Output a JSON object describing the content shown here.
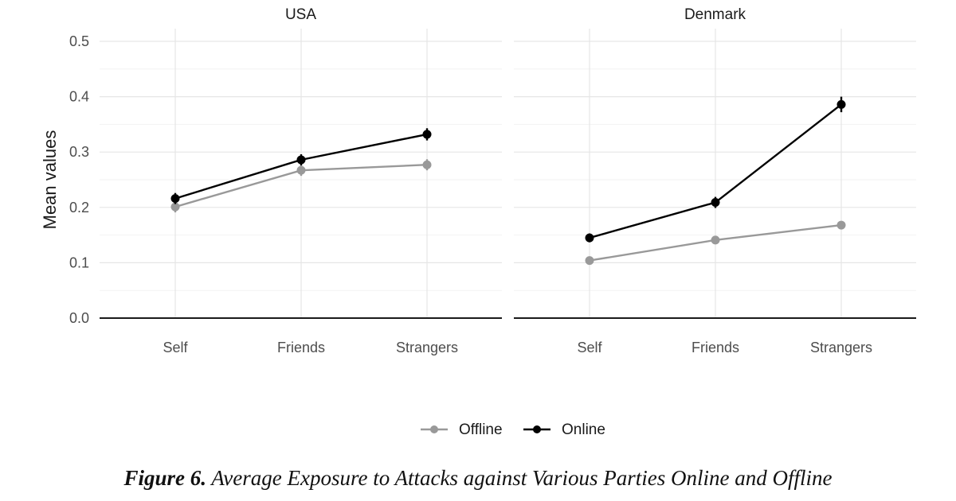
{
  "chart_data": {
    "type": "line",
    "ylabel": "Mean values",
    "ylim": [
      0,
      0.5
    ],
    "yticks": [
      "0.0",
      "0.1",
      "0.2",
      "0.3",
      "0.4",
      "0.5"
    ],
    "categories": [
      "Self",
      "Friends",
      "Strangers"
    ],
    "grid": true,
    "legend_position": "bottom",
    "panels": [
      {
        "title": "USA",
        "series": [
          {
            "name": "Offline",
            "color": "#999999",
            "values": [
              0.201,
              0.267,
              0.277
            ],
            "err": [
              0.01,
              0.01,
              0.01
            ]
          },
          {
            "name": "Online",
            "color": "#000000",
            "values": [
              0.216,
              0.286,
              0.332
            ],
            "err": [
              0.01,
              0.01,
              0.011
            ]
          }
        ]
      },
      {
        "title": "Denmark",
        "series": [
          {
            "name": "Offline",
            "color": "#999999",
            "values": [
              0.104,
              0.141,
              0.168
            ],
            "err": [
              0.006,
              0.006,
              0.007
            ]
          },
          {
            "name": "Online",
            "color": "#000000",
            "values": [
              0.145,
              0.209,
              0.386
            ],
            "err": [
              0.008,
              0.01,
              0.014
            ]
          }
        ]
      }
    ],
    "legend": [
      "Offline",
      "Online"
    ]
  },
  "caption": {
    "label": "Figure 6.",
    "text": " Average Exposure to Attacks against Various Parties Online and Offline"
  }
}
